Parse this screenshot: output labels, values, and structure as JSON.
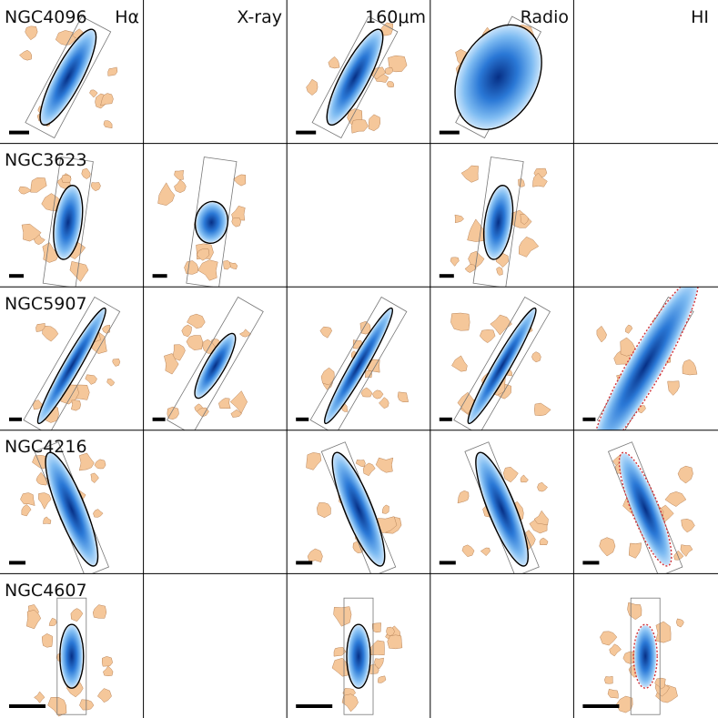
{
  "galaxies": [
    "NGC4096",
    "NGC3623",
    "NGC5907",
    "NGC4216",
    "NGC4607"
  ],
  "bands": [
    "Hα",
    "X-ray",
    "160μm",
    "Radio",
    "HI"
  ],
  "colors": {
    "background": "#ffffff",
    "grid_line": "#000000",
    "optical_contour_fill": "#f5c79a",
    "optical_contour_edge": "#b9855a",
    "emission_light": "#8fc6f5",
    "emission_mid": "#3d8ee0",
    "emission_dark": "#0a3f9c",
    "emission_contour": "#000000",
    "hi_contour": "#d0333a",
    "scale_bar": "#000000",
    "box_outline": "#777777"
  },
  "available": {
    "NGC4096": [
      "Hα",
      "160μm",
      "Radio"
    ],
    "NGC3623": [
      "Hα",
      "X-ray",
      "Radio"
    ],
    "NGC5907": [
      "Hα",
      "X-ray",
      "160μm",
      "Radio",
      "HI"
    ],
    "NGC4216": [
      "Hα",
      "160μm",
      "Radio",
      "HI"
    ],
    "NGC4607": [
      "Hα",
      "160μm",
      "HI"
    ]
  }
}
